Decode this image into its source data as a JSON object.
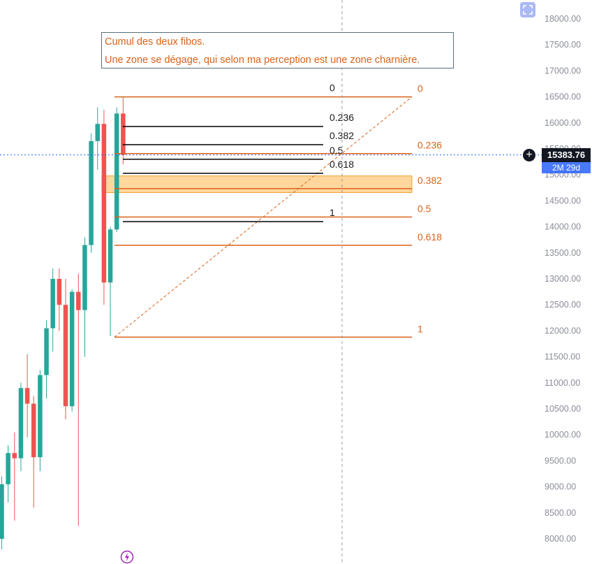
{
  "annotation": {
    "line1": "Cumul des deux fibos.",
    "line2": "Une zone se dégage, qui selon ma perception est une zone charnière."
  },
  "price_tag": {
    "value": "15383.76",
    "countdown": "2M 29d"
  },
  "colors": {
    "up": "#26a69a",
    "down": "#ef5350",
    "fib_orange": "#d9621a",
    "fib_black": "#000000",
    "zone_fill": "#ffb74d",
    "price_line": "#2962ff"
  },
  "icons": {
    "expand": "expand-icon",
    "crosshair": "plus-circle-icon",
    "lightning": "lightning-icon"
  },
  "chart_data": {
    "type": "candlestick",
    "y_axis": {
      "ticks": [
        "18000.00",
        "17500.00",
        "17000.00",
        "16500.00",
        "16000.00",
        "15500.00",
        "15000.00",
        "14500.00",
        "14000.00",
        "13500.00",
        "13000.00",
        "12500.00",
        "12000.00",
        "11500.00",
        "11000.00",
        "10500.00",
        "10000.00",
        "9500.00",
        "9000.00",
        "8500.00",
        "8000.00"
      ],
      "range": [
        7800,
        18300
      ],
      "position": "right"
    },
    "current_price": 15383.76,
    "candles": [
      {
        "o": 8000,
        "h": 9200,
        "l": 7800,
        "c": 9050
      },
      {
        "o": 9050,
        "h": 9800,
        "l": 8700,
        "c": 9650
      },
      {
        "o": 9650,
        "h": 10050,
        "l": 8350,
        "c": 9550
      },
      {
        "o": 9550,
        "h": 11000,
        "l": 9300,
        "c": 10900
      },
      {
        "o": 10900,
        "h": 11550,
        "l": 9950,
        "c": 10600
      },
      {
        "o": 10600,
        "h": 10750,
        "l": 8600,
        "c": 9570
      },
      {
        "o": 9570,
        "h": 11250,
        "l": 9300,
        "c": 11150
      },
      {
        "o": 11150,
        "h": 12200,
        "l": 10700,
        "c": 12050
      },
      {
        "o": 12050,
        "h": 13200,
        "l": 11600,
        "c": 13000
      },
      {
        "o": 13000,
        "h": 13200,
        "l": 12000,
        "c": 12500
      },
      {
        "o": 12500,
        "h": 13000,
        "l": 10300,
        "c": 10550
      },
      {
        "o": 10550,
        "h": 12800,
        "l": 10450,
        "c": 12750
      },
      {
        "o": 12750,
        "h": 13100,
        "l": 8250,
        "c": 12400
      },
      {
        "o": 12400,
        "h": 13800,
        "l": 11500,
        "c": 13650
      },
      {
        "o": 13650,
        "h": 15800,
        "l": 13500,
        "c": 15650
      },
      {
        "o": 15650,
        "h": 16300,
        "l": 15100,
        "c": 15980
      },
      {
        "o": 15980,
        "h": 16250,
        "l": 12500,
        "c": 12930
      },
      {
        "o": 12930,
        "h": 14000,
        "l": 11900,
        "c": 13950
      },
      {
        "o": 13950,
        "h": 16300,
        "l": 13900,
        "c": 16180
      },
      {
        "o": 16180,
        "h": 16500,
        "l": 15200,
        "c": 15383.76
      }
    ],
    "fib_orange": {
      "price_high": 16500,
      "price_low": 11880,
      "levels": [
        {
          "label": "0",
          "price": 16500
        },
        {
          "label": "0.236",
          "price": 15410
        },
        {
          "label": "0.382",
          "price": 14736
        },
        {
          "label": "0.5",
          "price": 14190
        },
        {
          "label": "0.618",
          "price": 13645
        },
        {
          "label": "1",
          "price": 11880
        }
      ]
    },
    "fib_black": {
      "levels": [
        {
          "label": "0",
          "price": 16500
        },
        {
          "label": "0.236",
          "price": 15930
        },
        {
          "label": "0.382",
          "price": 15580
        },
        {
          "label": "0.5",
          "price": 15300
        },
        {
          "label": "0.618",
          "price": 15030
        },
        {
          "label": "1",
          "price": 14100
        }
      ]
    },
    "zone": {
      "price_top": 14980,
      "price_bottom": 14660
    }
  }
}
